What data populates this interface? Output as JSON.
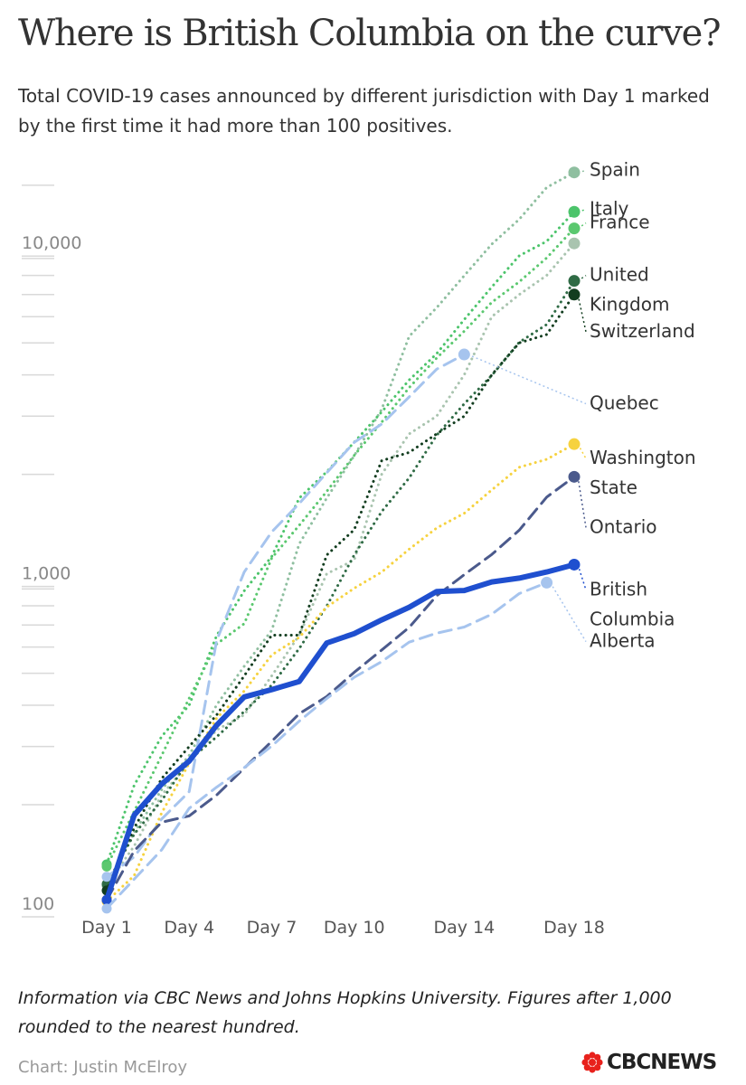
{
  "header": {
    "title": "Where is British Columbia on the curve?",
    "subtitle": "Total COVID-19 cases announced by different jurisdiction with Day 1 marked by the first time it had more than 100 positives."
  },
  "footer": {
    "note": "Information via CBC News and Johns Hopkins University. Figures after 1,000 rounded to the nearest hundred.",
    "credit": "Chart: Justin McElroy",
    "logo_text": "CBCNEWS",
    "logo_icon": "cbc-gem-icon",
    "logo_color": "#e8211c"
  },
  "chart_data": {
    "type": "line",
    "yscale": "log",
    "ylim": [
      100,
      17000
    ],
    "xlim": [
      1,
      18
    ],
    "y_ticks": [
      {
        "value": 100,
        "label": "100"
      },
      {
        "value": 1000,
        "label": "1,000"
      },
      {
        "value": 10000,
        "label": "10,000"
      }
    ],
    "y_minor_ticks": [
      200,
      300,
      400,
      500,
      600,
      700,
      800,
      900,
      2000,
      3000,
      4000,
      5000,
      6000,
      7000,
      8000,
      9000,
      15000
    ],
    "x_ticks": [
      {
        "value": 1,
        "label": "Day 1"
      },
      {
        "value": 4,
        "label": "Day 4"
      },
      {
        "value": 7,
        "label": "Day 7"
      },
      {
        "value": 10,
        "label": "Day 10"
      },
      {
        "value": 14,
        "label": "Day 14"
      },
      {
        "value": 18,
        "label": "Day 18"
      }
    ],
    "series": [
      {
        "name": "Spain",
        "label_lines": [
          "Spain"
        ],
        "color": "#8fbfa0",
        "dash": "dotted",
        "width": 3,
        "label_value": 16000,
        "x": [
          1,
          2,
          3,
          4,
          5,
          6,
          7,
          8,
          9,
          10,
          11,
          12,
          13,
          14,
          15,
          16,
          17,
          18
        ],
        "y": [
          114,
          165,
          222,
          282,
          401,
          525,
          674,
          1231,
          1695,
          2277,
          3146,
          5232,
          6391,
          7988,
          9942,
          11826,
          14769,
          16400
        ]
      },
      {
        "name": "Italy",
        "label_lines": [
          "Italy"
        ],
        "color": "#4cc46b",
        "dash": "dotted",
        "width": 3,
        "label_value": 12200,
        "x": [
          1,
          2,
          3,
          4,
          5,
          6,
          7,
          8,
          9,
          10,
          11,
          12,
          13,
          14,
          15,
          16,
          17,
          18
        ],
        "y": [
          132,
          229,
          322,
          400,
          650,
          888,
          1128,
          1694,
          2036,
          2502,
          3089,
          3858,
          4636,
          5883,
          7375,
          9172,
          10149,
          12462
        ]
      },
      {
        "name": "France",
        "label_lines": [
          "France"
        ],
        "color": "#5bc86f",
        "dash": "dotted",
        "width": 3,
        "label_value": 11100,
        "x": [
          1,
          2,
          3,
          4,
          5,
          6,
          7,
          8,
          9,
          10,
          11,
          12,
          13,
          14,
          15,
          16,
          17,
          18
        ],
        "y": [
          130,
          191,
          282,
          420,
          613,
          706,
          1116,
          1402,
          1774,
          2281,
          2876,
          3661,
          4499,
          5423,
          6633,
          7652,
          9043,
          11100
        ]
      },
      {
        "name": "Switzerland-series",
        "label_lines": [],
        "color": "#a9c4af",
        "dash": "dotted",
        "width": 3,
        "label_value": null,
        "x": [
          1,
          2,
          3,
          4,
          5,
          6,
          7,
          8,
          9,
          10,
          11,
          12,
          13,
          14,
          15,
          16,
          17,
          18
        ],
        "y": [
          114,
          150,
          214,
          268,
          337,
          374,
          491,
          652,
          1000,
          1100,
          2000,
          2650,
          3000,
          4000,
          6000,
          7000,
          8000,
          10000
        ]
      },
      {
        "name": "United Kingdom",
        "label_lines": [
          "United",
          "Kingdom"
        ],
        "color": "#2f6b45",
        "dash": "dotted",
        "width": 3,
        "label_value": 7700,
        "x": [
          1,
          2,
          3,
          4,
          5,
          6,
          7,
          8,
          9,
          10,
          11,
          12,
          13,
          14,
          15,
          16,
          17,
          18
        ],
        "y": [
          115,
          163,
          206,
          273,
          321,
          383,
          460,
          594,
          798,
          1140,
          1543,
          1950,
          2626,
          3269,
          3983,
          5018,
          5683,
          7700
        ]
      },
      {
        "name": "Switzerland",
        "label_lines": [
          "Switzerland"
        ],
        "color": "#123d1f",
        "dash": "dotted",
        "width": 3,
        "label_value": 5200,
        "x": [
          1,
          2,
          3,
          4,
          5,
          6,
          7,
          8,
          9,
          10,
          11,
          12,
          13,
          14,
          15,
          16,
          17,
          18
        ],
        "y": [
          110,
          170,
          240,
          300,
          374,
          491,
          652,
          652,
          1139,
          1359,
          2200,
          2330,
          2650,
          3000,
          4000,
          5000,
          5300,
          7000
        ]
      },
      {
        "name": "Quebec",
        "label_lines": [
          "Quebec"
        ],
        "color": "#a6c4ee",
        "dash": "dashed",
        "width": 3,
        "label_value": 3150,
        "x": [
          1,
          2,
          3,
          4,
          5,
          6,
          7,
          8,
          9,
          10,
          11,
          12,
          13,
          14
        ],
        "y": [
          121,
          139,
          181,
          219,
          628,
          1013,
          1339,
          1632,
          2021,
          2498,
          2840,
          3430,
          4162,
          4611
        ]
      },
      {
        "name": "Washington State",
        "label_lines": [
          "Washington",
          "State"
        ],
        "color": "#f6d23f",
        "dash": "dotted",
        "width": 3,
        "label_value": 2150,
        "x": [
          1,
          2,
          3,
          4,
          5,
          6,
          7,
          8,
          9,
          10,
          11,
          12,
          13,
          14,
          15,
          16,
          17,
          18
        ],
        "y": [
          102,
          122,
          189,
          267,
          366,
          442,
          568,
          642,
          793,
          904,
          1012,
          1187,
          1376,
          1524,
          1793,
          2101,
          2221,
          2469
        ]
      },
      {
        "name": "Ontario",
        "label_lines": [
          "Ontario"
        ],
        "color": "#4b5a8c",
        "dash": "dashed",
        "width": 3,
        "label_value": 1330,
        "x": [
          1,
          2,
          3,
          4,
          5,
          6,
          7,
          8,
          9,
          10,
          11,
          12,
          13,
          14,
          15,
          16,
          17,
          18
        ],
        "y": [
          103,
          145,
          177,
          185,
          214,
          258,
          311,
          377,
          425,
          503,
          588,
          688,
          858,
          994,
          1144,
          1355,
          1706,
          1966
        ]
      },
      {
        "name": "British Columbia",
        "label_lines": [
          "British",
          "Columbia"
        ],
        "color": "#1f4fcf",
        "dash": "solid",
        "width": 6,
        "label_value": 860,
        "x": [
          1,
          2,
          3,
          4,
          5,
          6,
          7,
          8,
          9,
          10,
          11,
          12,
          13,
          14,
          15,
          16,
          17,
          18
        ],
        "y": [
          103,
          186,
          231,
          271,
          348,
          424,
          446,
          472,
          617,
          659,
          725,
          792,
          884,
          890,
          945,
          970,
          1013,
          1066
        ]
      },
      {
        "name": "Alberta",
        "label_lines": [
          "Alberta"
        ],
        "color": "#a6c4ee",
        "dash": "dashed",
        "width": 3,
        "label_value": 600,
        "x": [
          1,
          2,
          3,
          4,
          5,
          6,
          7,
          8,
          9,
          10,
          11,
          12,
          13,
          14,
          15,
          16,
          17
        ],
        "y": [
          97,
          119,
          146,
          195,
          226,
          259,
          301,
          358,
          419,
          486,
          542,
          621,
          661,
          690,
          754,
          871,
          940
        ]
      }
    ]
  }
}
